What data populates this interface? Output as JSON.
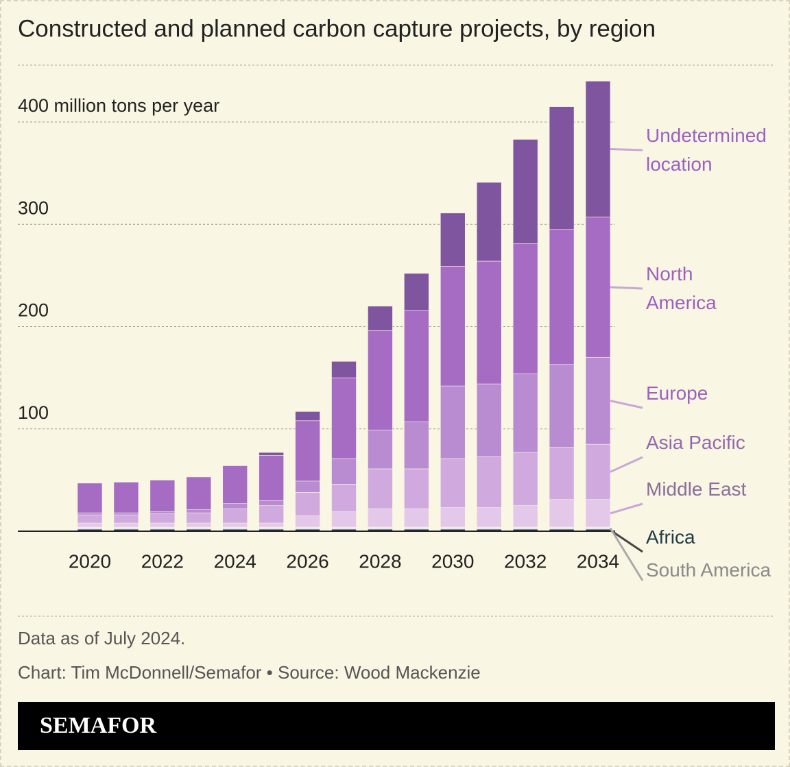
{
  "chart_data": {
    "type": "stacked-bar",
    "title": "Constructed and planned carbon capture projects, by region",
    "x": [
      2020,
      2021,
      2022,
      2023,
      2024,
      2025,
      2026,
      2027,
      2028,
      2029,
      2030,
      2031,
      2032,
      2033,
      2034
    ],
    "xticks": [
      2020,
      2022,
      2024,
      2026,
      2028,
      2030,
      2032,
      2034
    ],
    "ylim": [
      0,
      450
    ],
    "yticks": [
      100,
      200,
      300,
      {
        "value": 400,
        "label": "400 million tons per year"
      }
    ],
    "grid": true,
    "series": [
      {
        "name": "Africa",
        "color": "#1f3b44",
        "label_color": "#1f3b44",
        "values": [
          2,
          2,
          2,
          2,
          2,
          2,
          2,
          2,
          2,
          2,
          2,
          2,
          2,
          2,
          2
        ]
      },
      {
        "name": "South America",
        "color": "#f1e6f1",
        "label_color": "#8a8a8a",
        "values": [
          2,
          2,
          2,
          2,
          2,
          2,
          2,
          2,
          2,
          2,
          2,
          2,
          2,
          2,
          2
        ]
      },
      {
        "name": "Middle East",
        "color": "#e3c8ea",
        "label_color": "#8a6f9a",
        "values": [
          4,
          4,
          4,
          4,
          4,
          4,
          11,
          15,
          18,
          18,
          19,
          19,
          21,
          27,
          27
        ]
      },
      {
        "name": "Asia Pacific",
        "color": "#d0a9df",
        "label_color": "#9468ad",
        "values": [
          8,
          8,
          9,
          10,
          14,
          17,
          23,
          27,
          39,
          39,
          48,
          50,
          52,
          51,
          54
        ]
      },
      {
        "name": "Europe",
        "color": "#b98bd0",
        "label_color": "#9c60c0",
        "values": [
          2,
          2,
          2,
          3,
          5,
          5,
          11,
          25,
          38,
          46,
          71,
          71,
          77,
          81,
          85
        ]
      },
      {
        "name": "North America",
        "color": "#a66cc4",
        "label_color": "#9c60c0",
        "values": [
          29,
          30,
          31,
          32,
          37,
          44,
          59,
          79,
          97,
          109,
          117,
          120,
          127,
          132,
          137
        ]
      },
      {
        "name": "Undetermined location",
        "color": "#7f559f",
        "label_color": "#9c60c0",
        "values": [
          0,
          0,
          0,
          0,
          0,
          3,
          9,
          16,
          24,
          36,
          52,
          77,
          102,
          120,
          133
        ]
      }
    ],
    "notes": [
      "Data as of July 2024.",
      "Chart: Tim McDonnell/Semafor • Source: Wood Mackenzie"
    ],
    "brand": "SEMAFOR"
  }
}
